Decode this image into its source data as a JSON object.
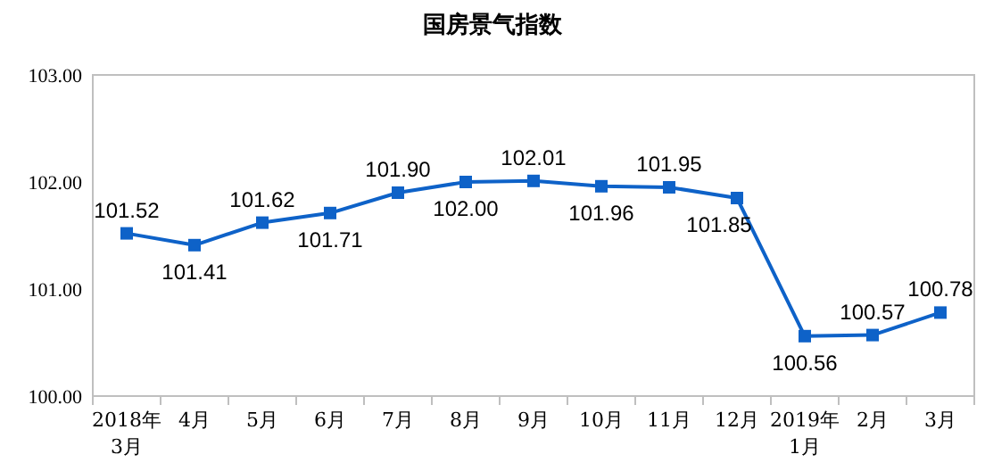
{
  "chart_data": {
    "type": "line",
    "title": "国房景气指数",
    "categories": [
      "2018年\n3月",
      "4月",
      "5月",
      "6月",
      "7月",
      "8月",
      "9月",
      "10月",
      "11月",
      "12月",
      "2019年\n1月",
      "2月",
      "3月"
    ],
    "series": [
      {
        "color": "#0e62c8",
        "values": [
          101.52,
          101.41,
          101.62,
          101.71,
          101.9,
          102.0,
          102.01,
          101.96,
          101.95,
          101.85,
          100.56,
          100.57,
          100.78
        ],
        "value_labels": [
          "101.52",
          "101.41",
          "101.62",
          "101.71",
          "101.90",
          "102.00",
          "102.01",
          "101.96",
          "101.95",
          "101.85",
          "100.56",
          "100.57",
          "100.78"
        ]
      }
    ],
    "ylim": [
      100,
      103
    ],
    "yticks": [
      {
        "value": 100,
        "label": "100.00"
      },
      {
        "value": 101,
        "label": "101.00"
      },
      {
        "value": 102,
        "label": "102.00"
      },
      {
        "value": 103,
        "label": "103.00"
      }
    ],
    "marker": "square",
    "line_style": "solid"
  }
}
